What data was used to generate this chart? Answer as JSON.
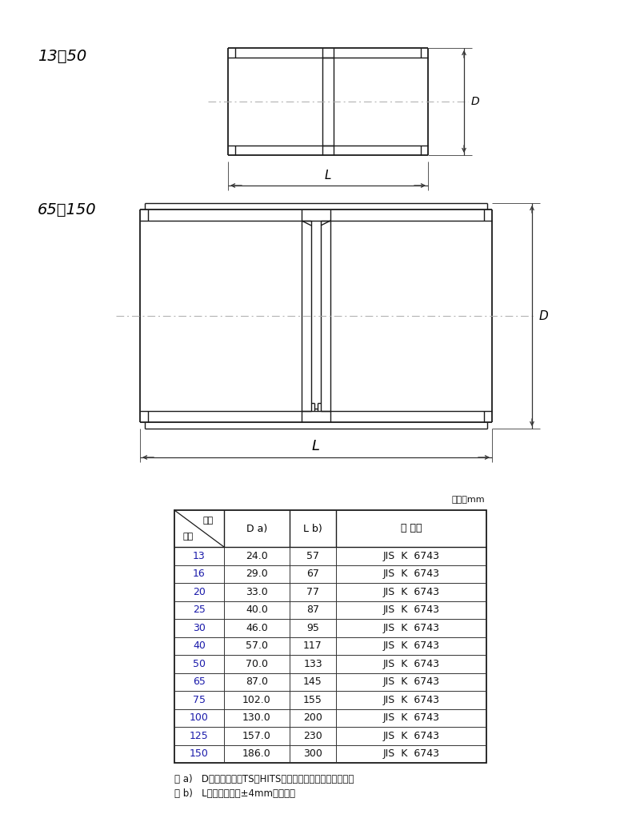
{
  "bg_color": "#ffffff",
  "line_color": "#1a1a1a",
  "gray_line": "#888888",
  "blue_text": "#1a1aaa",
  "label_13_50": "13〜50",
  "label_65_150": "65〜150",
  "unit_label": "単位：mm",
  "header1": "記号",
  "header1b": "呼径",
  "header2": "D a)",
  "header3": "L b)",
  "header4": "規 　格",
  "rows": [
    [
      "13",
      "24.0",
      "57",
      "JIS  K  6743"
    ],
    [
      "16",
      "29.0",
      "67",
      "JIS  K  6743"
    ],
    [
      "20",
      "33.0",
      "77",
      "JIS  K  6743"
    ],
    [
      "25",
      "40.0",
      "87",
      "JIS  K  6743"
    ],
    [
      "30",
      "46.0",
      "95",
      "JIS  K  6743"
    ],
    [
      "40",
      "57.0",
      "117",
      "JIS  K  6743"
    ],
    [
      "50",
      "70.0",
      "133",
      "JIS  K  6743"
    ],
    [
      "65",
      "87.0",
      "145",
      "JIS  K  6743"
    ],
    [
      "75",
      "102.0",
      "155",
      "JIS  K  6743"
    ],
    [
      "100",
      "130.0",
      "200",
      "JIS  K  6743"
    ],
    [
      "125",
      "157.0",
      "230",
      "JIS  K  6743"
    ],
    [
      "150",
      "186.0",
      "300",
      "JIS  K  6743"
    ]
  ],
  "note_a": "注 a)   Dの許容差は、TS・HITS継手受口共通寸法図による。",
  "note_b": "注 b)   Lの許容差は、±4mmとする。"
}
